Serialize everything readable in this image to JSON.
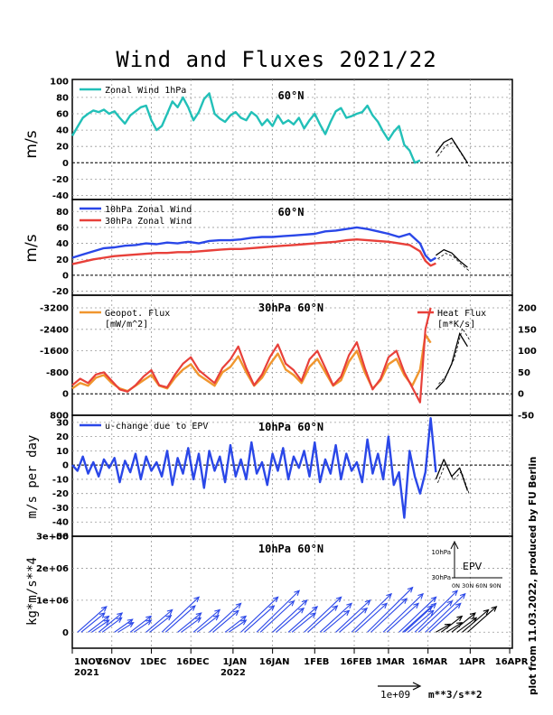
{
  "title": "Wind and Fluxes 2021/22",
  "credit": "plot from 11.03.2022, produced by FU Berlin",
  "x_axis": {
    "ticks": [
      "1NOV",
      "16NOV",
      "1DEC",
      "16DEC",
      "1JAN",
      "16JAN",
      "1FEB",
      "16FEB",
      "1MAR",
      "16MAR",
      "1APR",
      "16APR"
    ],
    "year_labels": {
      "first": "2021",
      "jan": "2022"
    }
  },
  "colors": {
    "cyan": "#22c0b8",
    "blue": "#2a47e8",
    "red": "#e8403a",
    "orange": "#f0962e",
    "forecast": "#000000",
    "grid": "#999999"
  },
  "scale_label": "1e+09",
  "scale_unit": "m**3/s**2",
  "chart_data": [
    {
      "type": "line",
      "title": "60°N",
      "ylabel": "m/s",
      "ylim": [
        -45,
        102
      ],
      "yticks": [
        "100",
        "80",
        "60",
        "40",
        "20",
        "0",
        "-20",
        "-40"
      ],
      "legend": [
        "Zonal Wind 1hPa"
      ],
      "series": [
        {
          "name": "Zonal Wind 1hPa",
          "color": "cyan",
          "x": [
            0,
            2,
            4,
            6,
            8,
            10,
            12,
            14,
            16,
            18,
            20,
            22,
            24,
            26,
            28,
            30,
            32,
            34,
            36,
            38,
            40,
            42,
            44,
            46,
            48,
            50,
            52,
            54,
            56,
            58,
            60,
            62,
            64,
            66,
            68,
            70,
            72,
            74,
            76,
            78,
            80,
            82,
            84,
            86,
            88,
            90,
            92,
            94,
            96,
            98,
            100,
            102,
            104,
            106,
            108,
            110,
            112,
            114,
            116,
            118,
            120,
            122,
            124,
            126,
            128,
            130,
            132
          ],
          "values": [
            33,
            44,
            55,
            60,
            64,
            62,
            65,
            60,
            63,
            55,
            48,
            58,
            63,
            68,
            70,
            52,
            40,
            45,
            60,
            75,
            68,
            80,
            68,
            52,
            62,
            78,
            85,
            60,
            54,
            50,
            58,
            62,
            55,
            52,
            62,
            57,
            46,
            53,
            45,
            58,
            48,
            52,
            47,
            55,
            42,
            52,
            60,
            47,
            35,
            50,
            63,
            67,
            55,
            57,
            60,
            62,
            70,
            58,
            50,
            38,
            28,
            38,
            45,
            22,
            15,
            0,
            3
          ]
        },
        {
          "name": "forecast",
          "color": "forecast",
          "x": [
            138,
            141,
            144,
            147,
            150
          ],
          "values": [
            12,
            25,
            30,
            15,
            0
          ]
        }
      ]
    },
    {
      "type": "line",
      "title": "60°N",
      "ylabel": "m/s",
      "ylim": [
        -25,
        95
      ],
      "yticks": [
        "80",
        "60",
        "40",
        "20",
        "0",
        "-20"
      ],
      "legend": [
        "10hPa Zonal Wind",
        "30hPa Zonal Wind"
      ],
      "series": [
        {
          "name": "10hPa Zonal Wind",
          "color": "blue",
          "x": [
            0,
            4,
            8,
            12,
            16,
            20,
            24,
            28,
            32,
            36,
            40,
            44,
            48,
            52,
            56,
            60,
            64,
            68,
            72,
            76,
            80,
            84,
            88,
            92,
            96,
            100,
            104,
            108,
            112,
            116,
            120,
            124,
            128,
            132,
            134,
            136,
            138
          ],
          "values": [
            22,
            26,
            30,
            34,
            35,
            37,
            38,
            40,
            39,
            41,
            40,
            42,
            40,
            43,
            44,
            44,
            45,
            47,
            48,
            48,
            49,
            50,
            51,
            52,
            55,
            56,
            58,
            60,
            58,
            55,
            52,
            48,
            52,
            40,
            25,
            18,
            22
          ]
        },
        {
          "name": "30hPa Zonal Wind",
          "color": "red",
          "x": [
            0,
            4,
            8,
            12,
            16,
            20,
            24,
            28,
            32,
            36,
            40,
            44,
            48,
            52,
            56,
            60,
            64,
            68,
            72,
            76,
            80,
            84,
            88,
            92,
            96,
            100,
            104,
            108,
            112,
            116,
            120,
            124,
            128,
            132,
            134,
            136,
            138
          ],
          "values": [
            14,
            17,
            20,
            22,
            24,
            25,
            26,
            27,
            28,
            28,
            29,
            29,
            30,
            31,
            32,
            33,
            33,
            34,
            35,
            36,
            37,
            38,
            39,
            40,
            41,
            42,
            44,
            45,
            44,
            43,
            42,
            40,
            38,
            30,
            18,
            12,
            15
          ]
        },
        {
          "name": "forecast",
          "color": "forecast",
          "x": [
            138,
            141,
            144,
            147,
            150
          ],
          "values": [
            25,
            32,
            28,
            18,
            10
          ]
        }
      ]
    },
    {
      "type": "line",
      "title": "30hPa 60°N",
      "legend": [
        "Geopot. Flux",
        "Heat Flux"
      ],
      "left_axis": {
        "label": "[mW/m^2]",
        "yticks": [
          "-3200",
          "-2400",
          "-1600",
          "-800",
          "0",
          "800"
        ]
      },
      "right_axis": {
        "label": "[m*K/s]",
        "yticks": [
          "200",
          "150",
          "100",
          "50",
          "0",
          "-50"
        ]
      },
      "series": [
        {
          "name": "Geopot. Flux",
          "color": "orange",
          "x": [
            0,
            3,
            6,
            9,
            12,
            15,
            18,
            21,
            24,
            27,
            30,
            33,
            36,
            39,
            42,
            45,
            48,
            51,
            54,
            57,
            60,
            63,
            66,
            69,
            72,
            75,
            78,
            81,
            84,
            87,
            90,
            93,
            96,
            99,
            102,
            105,
            108,
            111,
            114,
            117,
            120,
            123,
            126,
            129,
            132,
            134,
            136
          ],
          "values": [
            200,
            400,
            300,
            600,
            700,
            400,
            200,
            100,
            300,
            500,
            700,
            300,
            200,
            600,
            900,
            1100,
            700,
            500,
            300,
            800,
            1000,
            1400,
            800,
            300,
            600,
            1100,
            1500,
            900,
            700,
            400,
            1000,
            1300,
            800,
            300,
            500,
            1200,
            1600,
            800,
            200,
            500,
            1100,
            1300,
            700,
            300,
            900,
            2200,
            1900
          ]
        },
        {
          "name": "Heat Flux",
          "color": "red",
          "x": [
            0,
            3,
            6,
            9,
            12,
            15,
            18,
            21,
            24,
            27,
            30,
            33,
            36,
            39,
            42,
            45,
            48,
            51,
            54,
            57,
            60,
            63,
            66,
            69,
            72,
            75,
            78,
            81,
            84,
            87,
            90,
            93,
            96,
            99,
            102,
            105,
            108,
            111,
            114,
            117,
            120,
            123,
            126,
            129,
            132,
            134,
            136
          ],
          "values": [
            20,
            35,
            25,
            45,
            50,
            30,
            10,
            5,
            20,
            40,
            55,
            20,
            15,
            45,
            70,
            85,
            55,
            40,
            25,
            60,
            80,
            110,
            60,
            20,
            45,
            85,
            115,
            70,
            55,
            30,
            80,
            100,
            60,
            20,
            40,
            90,
            120,
            60,
            10,
            35,
            85,
            100,
            50,
            15,
            -20,
            150,
            200
          ]
        },
        {
          "name": "forecast",
          "color": "forecast",
          "x": [
            138,
            141,
            144,
            147,
            150
          ],
          "values": [
            10,
            30,
            70,
            140,
            110
          ]
        }
      ]
    },
    {
      "type": "line",
      "title": "10hPa 60°N",
      "ylabel": "m/s per day",
      "ylim": [
        -50,
        35
      ],
      "yticks": [
        "30",
        "20",
        "10",
        "0",
        "-10",
        "-20",
        "-30",
        "-40",
        "-50"
      ],
      "legend": [
        "u-change due to EPV"
      ],
      "series": [
        {
          "name": "u-change due to EPV",
          "color": "blue",
          "x": [
            0,
            2,
            4,
            6,
            8,
            10,
            12,
            14,
            16,
            18,
            20,
            22,
            24,
            26,
            28,
            30,
            32,
            34,
            36,
            38,
            40,
            42,
            44,
            46,
            48,
            50,
            52,
            54,
            56,
            58,
            60,
            62,
            64,
            66,
            68,
            70,
            72,
            74,
            76,
            78,
            80,
            82,
            84,
            86,
            88,
            90,
            92,
            94,
            96,
            98,
            100,
            102,
            104,
            106,
            108,
            110,
            112,
            114,
            116,
            118,
            120,
            122,
            124,
            126,
            128,
            130,
            132,
            134,
            136,
            138
          ],
          "values": [
            0,
            -4,
            6,
            -6,
            2,
            -8,
            4,
            -2,
            5,
            -12,
            3,
            -5,
            8,
            -10,
            6,
            -4,
            2,
            -8,
            10,
            -14,
            5,
            -6,
            12,
            -10,
            8,
            -16,
            10,
            -4,
            6,
            -12,
            14,
            -8,
            4,
            -10,
            16,
            -6,
            2,
            -14,
            8,
            -4,
            12,
            -10,
            6,
            -2,
            10,
            -8,
            16,
            -12,
            4,
            -6,
            14,
            -10,
            8,
            -4,
            2,
            -12,
            18,
            -6,
            8,
            -10,
            20,
            -14,
            -5,
            -37,
            10,
            -8,
            -20,
            -5,
            33,
            -5
          ]
        },
        {
          "name": "forecast",
          "color": "forecast",
          "x": [
            138,
            141,
            144,
            147,
            150
          ],
          "values": [
            -10,
            4,
            -8,
            -2,
            -18
          ]
        }
      ]
    },
    {
      "type": "quiver",
      "title": "10hPa 60°N",
      "ylabel": "kg*m/s**4",
      "ylim": [
        -500000,
        3000000
      ],
      "yticks": [
        "3e+06",
        "2e+06",
        "1e+06",
        "0"
      ],
      "inset": {
        "title": "EPV",
        "yticks": [
          "10hPa",
          "30hPa"
        ],
        "xticks": "0N 30N 60N 90N"
      },
      "arrows_x": [
        2,
        6,
        10,
        16,
        22,
        28,
        34,
        40,
        46,
        52,
        58,
        64,
        70,
        76,
        82,
        88,
        94,
        100,
        106,
        112,
        118,
        124,
        126,
        130,
        134
      ],
      "arrows_height": [
        800000,
        500000,
        600000,
        400000,
        500000,
        700000,
        1100000,
        600000,
        700000,
        900000,
        500000,
        1100000,
        1300000,
        1000000,
        800000,
        1100000,
        900000,
        1000000,
        1200000,
        1400000,
        1200000,
        1100000,
        900000,
        1300000,
        1200000
      ],
      "forecast_x": [
        138,
        140,
        142,
        144,
        146,
        148,
        150
      ],
      "forecast_height": [
        250000,
        500000,
        300000,
        600000,
        450000,
        700000,
        800000
      ]
    }
  ]
}
